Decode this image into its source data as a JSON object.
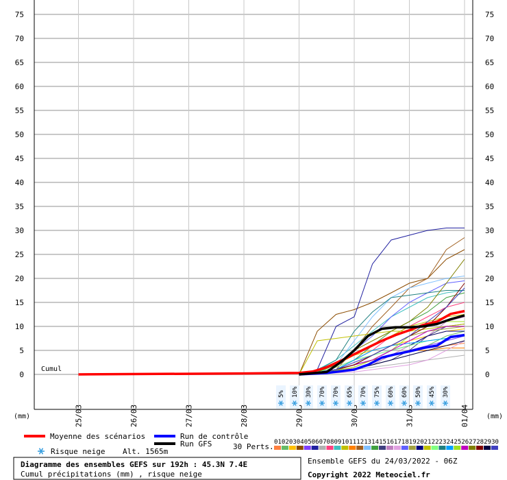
{
  "chart_data": {
    "type": "line",
    "y_ticks": [
      0,
      5,
      10,
      15,
      20,
      25,
      30,
      35,
      40,
      45,
      50,
      55,
      60,
      65,
      70,
      75
    ],
    "ylim": [
      0,
      77
    ],
    "x_labels": [
      "25/03",
      "26/03",
      "27/03",
      "28/03",
      "29/03",
      "30/03",
      "31/03",
      "01/04"
    ],
    "unit_left": "(mm)",
    "unit_right": "(mm)",
    "cumul_label": "Cumul",
    "snow_risk": [
      "5%",
      "10%",
      "30%",
      "70%",
      "70%",
      "65%",
      "70%",
      "75%",
      "60%",
      "60%",
      "50%",
      "45%",
      "30%"
    ],
    "series": [
      {
        "name": "Moyenne des scénarios",
        "color": "#ff0000",
        "x": [
          25.0,
          28.0,
          29.0,
          29.25,
          29.5,
          29.75,
          30.0,
          30.25,
          30.5,
          30.75,
          31.0,
          31.25,
          31.5,
          31.75,
          32.0
        ],
        "y": [
          0,
          0.2,
          0.3,
          0.6,
          1.5,
          2.8,
          4.2,
          5.6,
          7.0,
          8.2,
          9.2,
          10.3,
          11.0,
          12.6,
          13.2
        ]
      },
      {
        "name": "Run de contrôle",
        "color": "#0000ff",
        "x": [
          29.0,
          29.5,
          30.0,
          30.25,
          30.5,
          30.75,
          31.0,
          31.25,
          31.5,
          31.75,
          32.0
        ],
        "y": [
          0,
          0.3,
          1.0,
          2.0,
          3.5,
          4.2,
          4.8,
          5.5,
          6.0,
          7.8,
          8.2
        ]
      },
      {
        "name": "Run GFS",
        "color": "#000000",
        "x": [
          29.0,
          29.5,
          29.75,
          30.0,
          30.25,
          30.5,
          30.75,
          31.0,
          31.25,
          31.5,
          31.75,
          32.0
        ],
        "y": [
          0,
          0.5,
          2.5,
          5.0,
          8.0,
          9.5,
          9.8,
          9.8,
          10.0,
          10.5,
          11.5,
          12.3
        ]
      }
    ],
    "perturbations": [
      {
        "id": "01",
        "color": "#ff8040",
        "y": [
          0,
          0.1,
          0.5,
          1.5,
          3,
          4,
          5,
          5.5,
          6,
          6.5
        ]
      },
      {
        "id": "02",
        "color": "#66bb66",
        "y": [
          0,
          0.3,
          1,
          2,
          3,
          4,
          5,
          6,
          8,
          9
        ]
      },
      {
        "id": "03",
        "color": "#ffc000",
        "y": [
          0,
          0.5,
          2,
          4,
          5,
          6,
          7,
          8,
          9,
          9.5
        ]
      },
      {
        "id": "04",
        "color": "#8c4c00",
        "y": [
          0,
          9,
          12.5,
          13.5,
          15,
          17,
          19,
          20,
          24,
          26
        ]
      },
      {
        "id": "05",
        "color": "#8040ff",
        "y": [
          0,
          0.5,
          1,
          2,
          3,
          4,
          5,
          6,
          7,
          8
        ]
      },
      {
        "id": "06",
        "color": "#2020a0",
        "y": [
          0,
          1,
          10,
          12,
          23,
          28,
          29,
          30,
          30.5,
          30.5
        ]
      },
      {
        "id": "07",
        "color": "#b0b0b0",
        "y": [
          0,
          0.2,
          0.5,
          1,
          1.5,
          2,
          2.5,
          3,
          3.5,
          4
        ]
      },
      {
        "id": "08",
        "color": "#ff4080",
        "y": [
          0,
          0.5,
          1.5,
          3,
          5,
          8,
          10,
          12,
          14,
          15
        ]
      },
      {
        "id": "09",
        "color": "#40c0c0",
        "y": [
          0,
          1,
          3,
          6,
          9,
          12,
          14,
          16,
          17,
          17.5
        ]
      },
      {
        "id": "10",
        "color": "#c0c000",
        "y": [
          0,
          0.5,
          2,
          4,
          6,
          8,
          10,
          11,
          12,
          12.5
        ]
      },
      {
        "id": "11",
        "color": "#ff8000",
        "y": [
          0,
          0.2,
          0.8,
          2,
          3,
          4,
          5,
          5,
          5.5,
          5.5
        ]
      },
      {
        "id": "12",
        "color": "#a06020",
        "y": [
          0,
          0.3,
          1,
          5,
          10,
          14,
          18,
          20,
          26,
          28.5
        ]
      },
      {
        "id": "13",
        "color": "#80c0ff",
        "y": [
          0,
          0.5,
          2,
          7,
          12,
          16,
          18,
          19,
          20,
          20.5
        ]
      },
      {
        "id": "14",
        "color": "#40a040",
        "y": [
          0,
          0.3,
          1,
          3,
          6,
          9,
          11,
          13,
          16,
          17
        ]
      },
      {
        "id": "15",
        "color": "#404080",
        "y": [
          0,
          0.2,
          0.5,
          1,
          2,
          3,
          5,
          8,
          10,
          10.5
        ]
      },
      {
        "id": "16",
        "color": "#c080c0",
        "y": [
          0,
          0.2,
          0.5,
          1,
          2,
          4,
          6,
          8,
          11,
          12
        ]
      },
      {
        "id": "17",
        "color": "#e0a0e0",
        "y": [
          0,
          0.1,
          0.3,
          0.5,
          1,
          1.5,
          2,
          3,
          5,
          7
        ]
      },
      {
        "id": "18",
        "color": "#6060ff",
        "y": [
          0,
          0.5,
          2,
          5,
          8,
          12,
          15,
          17,
          19,
          19.5
        ]
      },
      {
        "id": "19",
        "color": "#a0a040",
        "y": [
          0,
          0.2,
          0.8,
          2,
          4,
          6,
          8,
          9,
          9.5,
          10
        ]
      },
      {
        "id": "20",
        "color": "#000080",
        "y": [
          0,
          0.5,
          1,
          2,
          3,
          5,
          6,
          8,
          9,
          9
        ]
      },
      {
        "id": "21",
        "color": "#c0c000",
        "y": [
          0,
          7,
          7.5,
          8,
          8.5,
          9,
          9,
          9.5,
          10,
          10.5
        ]
      },
      {
        "id": "22",
        "color": "#80ff80",
        "y": [
          0,
          0.5,
          1.5,
          3,
          4,
          5,
          6,
          7,
          7.5,
          8
        ]
      },
      {
        "id": "23",
        "color": "#208080",
        "y": [
          0,
          0.8,
          3,
          9,
          13,
          16,
          16.5,
          17,
          17.5,
          17.5
        ]
      },
      {
        "id": "24",
        "color": "#00a0ff",
        "y": [
          0,
          0.3,
          1,
          3,
          5,
          6,
          6.5,
          7,
          7.5,
          8
        ]
      },
      {
        "id": "25",
        "color": "#a0e020",
        "y": [
          0,
          0.2,
          0.8,
          1.5,
          3,
          5,
          8,
          10,
          11,
          11
        ]
      },
      {
        "id": "26",
        "color": "#c000c0",
        "y": [
          0,
          0.3,
          1,
          2,
          3,
          5,
          7,
          9,
          10,
          10
        ]
      },
      {
        "id": "27",
        "color": "#808000",
        "y": [
          0,
          0.5,
          2,
          5,
          7,
          9,
          11,
          14,
          19,
          24
        ]
      },
      {
        "id": "28",
        "color": "#800000",
        "y": [
          0,
          0.3,
          1,
          2,
          4,
          6,
          8,
          10,
          14,
          19
        ]
      },
      {
        "id": "29",
        "color": "#000040",
        "y": [
          0,
          0.2,
          0.6,
          1.2,
          2,
          3,
          4,
          5,
          6,
          7
        ]
      },
      {
        "id": "30",
        "color": "#4040c0",
        "y": [
          0,
          0.3,
          1,
          2.5,
          4,
          6,
          8,
          11,
          14,
          18
        ]
      }
    ],
    "pert_x": [
      29.0,
      29.33,
      29.67,
      30.0,
      30.33,
      30.67,
      31.0,
      31.33,
      31.67,
      32.0
    ]
  },
  "legend": {
    "mean_label": "Moyenne des scénarios",
    "control_label": "Run de contrôle",
    "gfs_label": "Run GFS",
    "snow_label": "Risque neige",
    "altitude": "Alt. 1565m",
    "perts_label": "30 Perts.",
    "pert_numbers": "010203040506070809101112131415161718192021222324252627282930"
  },
  "footer": {
    "title": "Diagramme des ensembles GEFS sur 192h : 45.3N 7.4E",
    "subtitle": "Cumul précipitations (mm) , risque neige",
    "run_info": "Ensemble GEFS du 24/03/2022 - 06Z",
    "copyright": "Copyright 2022 Meteociel.fr"
  }
}
